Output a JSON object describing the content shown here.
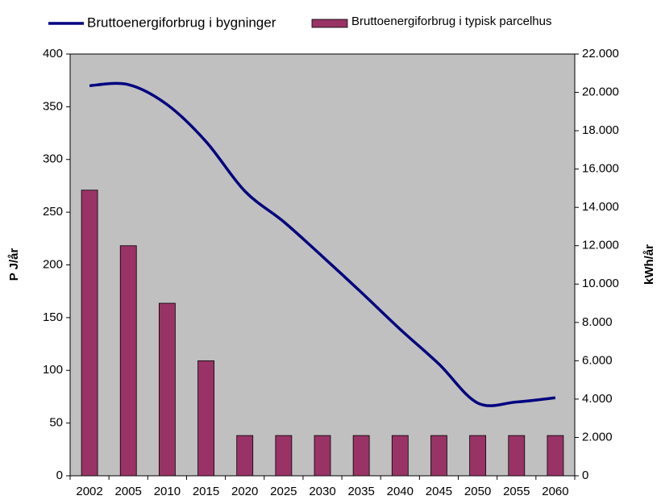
{
  "chart_data": {
    "type": "bar_line",
    "categories": [
      "2002",
      "2005",
      "2010",
      "2015",
      "2020",
      "2025",
      "2030",
      "2035",
      "2040",
      "2045",
      "2050",
      "2055",
      "2060"
    ],
    "series": [
      {
        "name": "Bruttoenergiforbrug i bygninger",
        "type": "line",
        "color": "#000080",
        "axis": "y",
        "values": [
          370,
          371,
          352,
          317,
          270,
          241,
          208,
          174,
          139,
          106,
          69,
          70,
          74
        ]
      },
      {
        "name": "Bruttoenergiforbrug i typisk parcelhus",
        "type": "bar",
        "color": "#993366",
        "axis": "y2",
        "values": [
          14900,
          12000,
          9000,
          6000,
          2100,
          2100,
          2100,
          2100,
          2100,
          2100,
          2100,
          2100,
          2100
        ]
      }
    ],
    "ylabel": "P J/år",
    "y2label": "kWh/år",
    "ylim": [
      0,
      400
    ],
    "yticks": [
      0,
      50,
      100,
      150,
      200,
      250,
      300,
      350,
      400
    ],
    "y2lim": [
      0,
      22000
    ],
    "y2ticks": [
      0,
      {
        "value": 2000,
        "label": "2.000"
      },
      {
        "value": 4000,
        "label": "4.000"
      },
      {
        "value": 6000,
        "label": "6.000"
      },
      {
        "value": 8000,
        "label": "8.000"
      },
      {
        "value": 10000,
        "label": "10.000"
      },
      {
        "value": 12000,
        "label": "12.000"
      },
      {
        "value": 14000,
        "label": "14.000"
      },
      {
        "value": 16000,
        "label": "16.000"
      },
      {
        "value": 18000,
        "label": "18.000"
      },
      {
        "value": 20000,
        "label": "20.000"
      },
      {
        "value": 22000,
        "label": "22.000"
      }
    ],
    "legend": "top",
    "plot_background": "#c0c0c0"
  }
}
